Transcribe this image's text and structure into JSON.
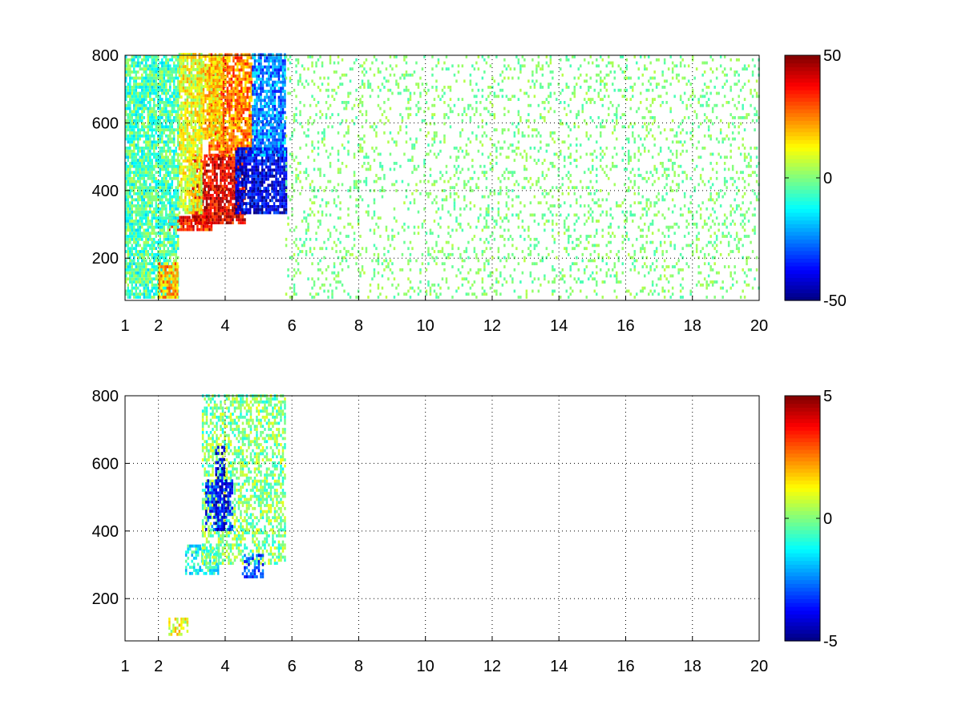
{
  "chart_data": [
    {
      "type": "heatmap",
      "title": "",
      "xlabel": "",
      "ylabel": "",
      "xlim": [
        1,
        20
      ],
      "ylim": [
        75,
        800
      ],
      "xticks": [
        "1",
        "2",
        "4",
        "6",
        "8",
        "10",
        "12",
        "14",
        "16",
        "18",
        "20"
      ],
      "yticks": [
        "200",
        "400",
        "600",
        "800"
      ],
      "grid": true,
      "colorbar": {
        "colormap": "jet",
        "range": [
          -50,
          50
        ],
        "ticks": [
          "50",
          "0",
          "-50"
        ]
      },
      "background": "#ffffff",
      "features": [
        {
          "x": [
            2.3,
            3.6
          ],
          "y": [
            280,
            320
          ],
          "value": 35
        },
        {
          "x": [
            3.0,
            4.6
          ],
          "y": [
            300,
            500
          ],
          "value": 40
        },
        {
          "x": [
            3.5,
            4.8
          ],
          "y": [
            500,
            800
          ],
          "value": 25
        },
        {
          "x": [
            3.2,
            3.9
          ],
          "y": [
            550,
            800
          ],
          "value": 15
        },
        {
          "x": [
            4.3,
            5.8
          ],
          "y": [
            330,
            520
          ],
          "value": -40
        },
        {
          "x": [
            4.8,
            5.8
          ],
          "y": [
            500,
            800
          ],
          "value": -25
        },
        {
          "x": [
            2.6,
            3.3
          ],
          "y": [
            330,
            800
          ],
          "value": 10
        },
        {
          "x": [
            1.0,
            2.6
          ],
          "y": [
            80,
            800
          ],
          "value": -5
        },
        {
          "x": [
            2.0,
            2.6
          ],
          "y": [
            80,
            180
          ],
          "value": 20
        },
        {
          "x": [
            5.8,
            20.0
          ],
          "y": [
            80,
            800
          ],
          "value": 0
        }
      ]
    },
    {
      "type": "heatmap",
      "title": "",
      "xlabel": "",
      "ylabel": "",
      "xlim": [
        1,
        20
      ],
      "ylim": [
        75,
        800
      ],
      "xticks": [
        "1",
        "2",
        "4",
        "6",
        "8",
        "10",
        "12",
        "14",
        "16",
        "18",
        "20"
      ],
      "yticks": [
        "200",
        "400",
        "600",
        "800"
      ],
      "grid": true,
      "colorbar": {
        "colormap": "jet",
        "range": [
          -5,
          5
        ],
        "ticks": [
          "5",
          "0",
          "-5"
        ]
      },
      "background": "#ffffff",
      "features": [
        {
          "x": [
            2.8,
            3.8
          ],
          "y": [
            270,
            360
          ],
          "value": -1
        },
        {
          "x": [
            3.3,
            5.8
          ],
          "y": [
            300,
            800
          ],
          "value": 0
        },
        {
          "x": [
            3.7,
            4.0
          ],
          "y": [
            400,
            650
          ],
          "value": -4
        },
        {
          "x": [
            4.5,
            5.1
          ],
          "y": [
            260,
            330
          ],
          "value": -3
        },
        {
          "x": [
            3.4,
            4.2
          ],
          "y": [
            400,
            550
          ],
          "value": -3.5
        },
        {
          "x": [
            2.3,
            2.9
          ],
          "y": [
            90,
            140
          ],
          "value": 1
        }
      ]
    }
  ]
}
